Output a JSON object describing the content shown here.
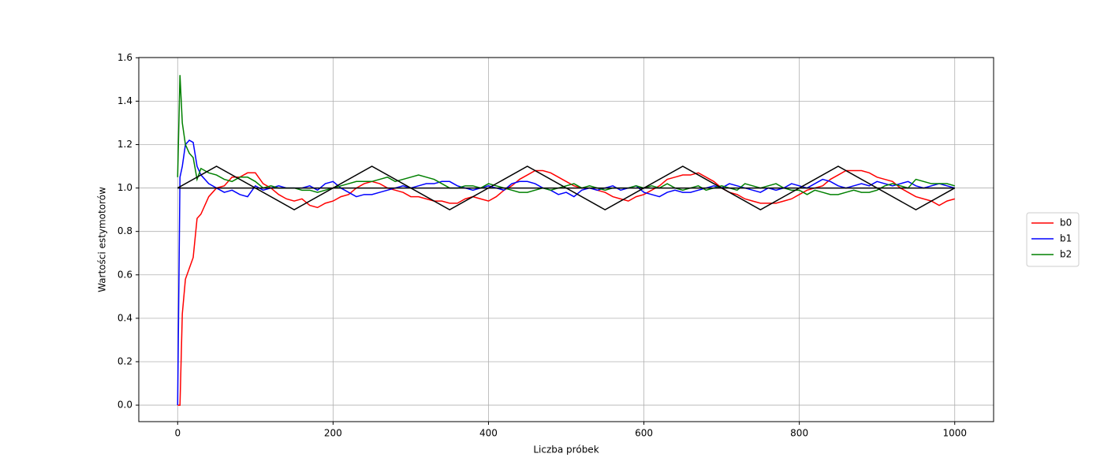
{
  "chart_data": {
    "type": "line",
    "x_label": "Liczba próbek",
    "y_label": "Wartości estymotorów",
    "x": [
      0,
      3,
      6,
      10,
      15,
      20,
      25,
      30,
      40,
      50,
      60,
      70,
      80,
      90,
      100,
      110,
      120,
      130,
      140,
      150,
      160,
      170,
      180,
      190,
      200,
      210,
      220,
      230,
      240,
      250,
      260,
      270,
      280,
      290,
      300,
      310,
      320,
      330,
      340,
      350,
      360,
      370,
      380,
      390,
      400,
      410,
      420,
      430,
      440,
      450,
      460,
      470,
      480,
      490,
      500,
      510,
      520,
      530,
      540,
      550,
      560,
      570,
      580,
      590,
      600,
      610,
      620,
      630,
      640,
      650,
      660,
      670,
      680,
      690,
      700,
      710,
      720,
      730,
      740,
      750,
      760,
      770,
      780,
      790,
      800,
      810,
      820,
      830,
      840,
      850,
      860,
      870,
      880,
      890,
      900,
      910,
      920,
      930,
      940,
      950,
      960,
      970,
      980,
      990,
      1000
    ],
    "series": [
      {
        "name": "b0",
        "color": "#ff0000",
        "values": [
          0,
          0,
          0.42,
          0.58,
          0.63,
          0.68,
          0.86,
          0.88,
          0.96,
          1.0,
          1.01,
          1.05,
          1.05,
          1.07,
          1.07,
          1.02,
          1.0,
          0.97,
          0.95,
          0.94,
          0.95,
          0.92,
          0.91,
          0.93,
          0.94,
          0.96,
          0.97,
          1.0,
          1.02,
          1.03,
          1.02,
          1.0,
          0.99,
          0.98,
          0.96,
          0.96,
          0.95,
          0.94,
          0.94,
          0.93,
          0.93,
          0.95,
          0.96,
          0.95,
          0.94,
          0.96,
          0.99,
          1.01,
          1.04,
          1.06,
          1.08,
          1.08,
          1.07,
          1.05,
          1.03,
          1.01,
          1.0,
          1.0,
          0.99,
          0.98,
          0.96,
          0.95,
          0.94,
          0.96,
          0.97,
          0.99,
          1.01,
          1.04,
          1.05,
          1.06,
          1.06,
          1.07,
          1.05,
          1.03,
          1.0,
          0.98,
          0.97,
          0.95,
          0.94,
          0.93,
          0.93,
          0.93,
          0.94,
          0.95,
          0.97,
          0.99,
          1.0,
          1.01,
          1.04,
          1.06,
          1.08,
          1.08,
          1.08,
          1.07,
          1.05,
          1.04,
          1.03,
          1.0,
          0.98,
          0.96,
          0.95,
          0.94,
          0.92,
          0.94,
          0.95
        ]
      },
      {
        "name": "b1",
        "color": "#0000ff",
        "values": [
          0,
          1.05,
          1.1,
          1.2,
          1.22,
          1.21,
          1.1,
          1.06,
          1.02,
          1.0,
          0.98,
          0.99,
          0.97,
          0.96,
          1.01,
          0.99,
          1.0,
          1.01,
          1.0,
          1.0,
          1.0,
          1.01,
          0.99,
          1.02,
          1.03,
          1.0,
          0.98,
          0.96,
          0.97,
          0.97,
          0.98,
          0.99,
          1.0,
          1.01,
          1.0,
          1.01,
          1.02,
          1.02,
          1.03,
          1.03,
          1.01,
          1.0,
          0.99,
          1.0,
          1.01,
          1.0,
          0.99,
          1.02,
          1.03,
          1.03,
          1.02,
          1.0,
          0.99,
          0.97,
          0.98,
          0.96,
          0.99,
          1.0,
          0.99,
          1.0,
          1.01,
          0.99,
          1.0,
          1.01,
          0.98,
          0.97,
          0.96,
          0.98,
          0.99,
          0.98,
          0.98,
          0.99,
          1.0,
          1.01,
          1.0,
          1.02,
          1.01,
          1.0,
          0.99,
          0.98,
          1.0,
          0.99,
          1.0,
          1.02,
          1.01,
          1.0,
          1.02,
          1.04,
          1.03,
          1.01,
          1.0,
          1.01,
          1.02,
          1.01,
          1.03,
          1.02,
          1.01,
          1.02,
          1.03,
          1.01,
          1.0,
          1.01,
          1.02,
          1.01,
          1.0
        ]
      },
      {
        "name": "b2",
        "color": "#008000",
        "values": [
          1.05,
          1.52,
          1.3,
          1.2,
          1.16,
          1.14,
          1.04,
          1.09,
          1.07,
          1.06,
          1.04,
          1.03,
          1.05,
          1.05,
          1.03,
          1.0,
          1.01,
          1.0,
          1.0,
          1.0,
          0.99,
          0.99,
          0.98,
          0.99,
          1.0,
          1.01,
          1.02,
          1.03,
          1.03,
          1.03,
          1.04,
          1.05,
          1.03,
          1.04,
          1.05,
          1.06,
          1.05,
          1.04,
          1.02,
          1.0,
          1.0,
          1.01,
          1.01,
          1.0,
          1.02,
          1.01,
          1.0,
          0.99,
          0.98,
          0.98,
          0.99,
          1.0,
          0.99,
          1.0,
          1.01,
          1.02,
          1.0,
          1.01,
          1.0,
          0.99,
          1.0,
          1.0,
          1.0,
          1.01,
          1.0,
          1.01,
          1.0,
          1.02,
          1.0,
          0.99,
          1.0,
          1.01,
          0.99,
          1.0,
          1.01,
          1.0,
          0.99,
          1.02,
          1.01,
          1.0,
          1.01,
          1.02,
          1.0,
          0.99,
          0.99,
          0.97,
          0.99,
          0.98,
          0.97,
          0.97,
          0.98,
          0.99,
          0.98,
          0.98,
          0.99,
          1.01,
          1.02,
          1.01,
          1.0,
          1.04,
          1.03,
          1.02,
          1.02,
          1.02,
          1.01
        ]
      }
    ],
    "reference_lines": [
      {
        "color": "#000000",
        "x": [
          0,
          1000
        ],
        "values": [
          1,
          1
        ]
      },
      {
        "color": "#000000",
        "x": [
          0,
          50,
          150,
          250,
          350,
          450,
          550,
          650,
          750,
          850,
          950,
          1000
        ],
        "values": [
          1,
          1.1,
          0.9,
          1.1,
          0.9,
          1.1,
          0.9,
          1.1,
          0.9,
          1.1,
          0.9,
          1
        ]
      }
    ],
    "xlim": [
      -50,
      1050
    ],
    "ylim": [
      -0.076,
      1.601
    ],
    "xticks": [
      0,
      200,
      400,
      600,
      800,
      1000
    ],
    "yticks": [
      {
        "value": 0,
        "label": "0.0"
      },
      0.2,
      0.4,
      0.6,
      0.8,
      {
        "value": 1,
        "label": "1.0"
      },
      1.2,
      1.4,
      1.6
    ],
    "grid": true,
    "legend": "right"
  }
}
